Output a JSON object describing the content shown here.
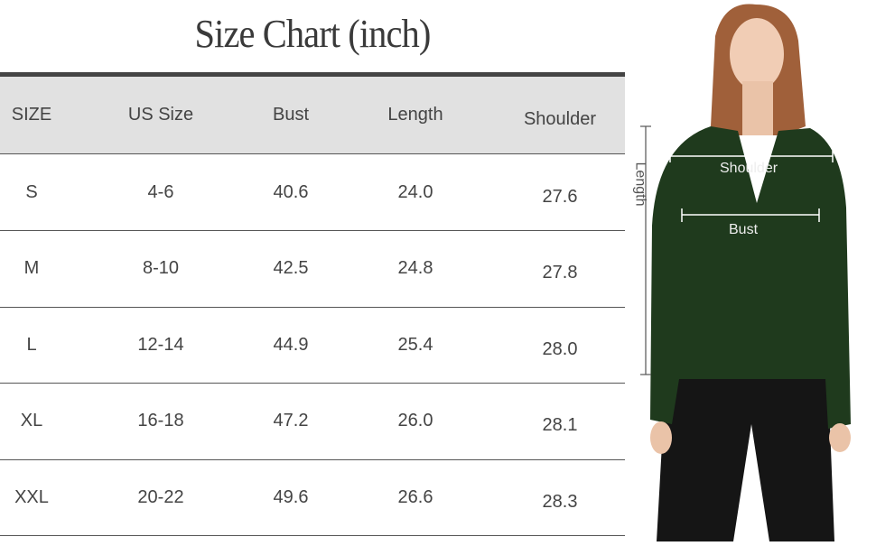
{
  "title": "Size Chart (inch)",
  "table": {
    "headers": [
      "SIZE",
      "US Size",
      "Bust",
      "Length",
      "Shoulder"
    ],
    "rows": [
      [
        "S",
        "4-6",
        "40.6",
        "24.0",
        "27.6"
      ],
      [
        "M",
        "8-10",
        "42.5",
        "24.8",
        "27.8"
      ],
      [
        "L",
        "12-14",
        "44.9",
        "25.4",
        "28.0"
      ],
      [
        "XL",
        "16-18",
        "47.2",
        "26.0",
        "28.1"
      ],
      [
        "XXL",
        "20-22",
        "49.6",
        "26.6",
        "28.3"
      ]
    ]
  },
  "photo": {
    "labels": {
      "shoulder": "Shoulder",
      "bust": "Bust",
      "length": "Length"
    },
    "colors": {
      "sweater": "#1f3a1d",
      "pants": "#151515",
      "header_bg": "#e1e1e1"
    }
  }
}
